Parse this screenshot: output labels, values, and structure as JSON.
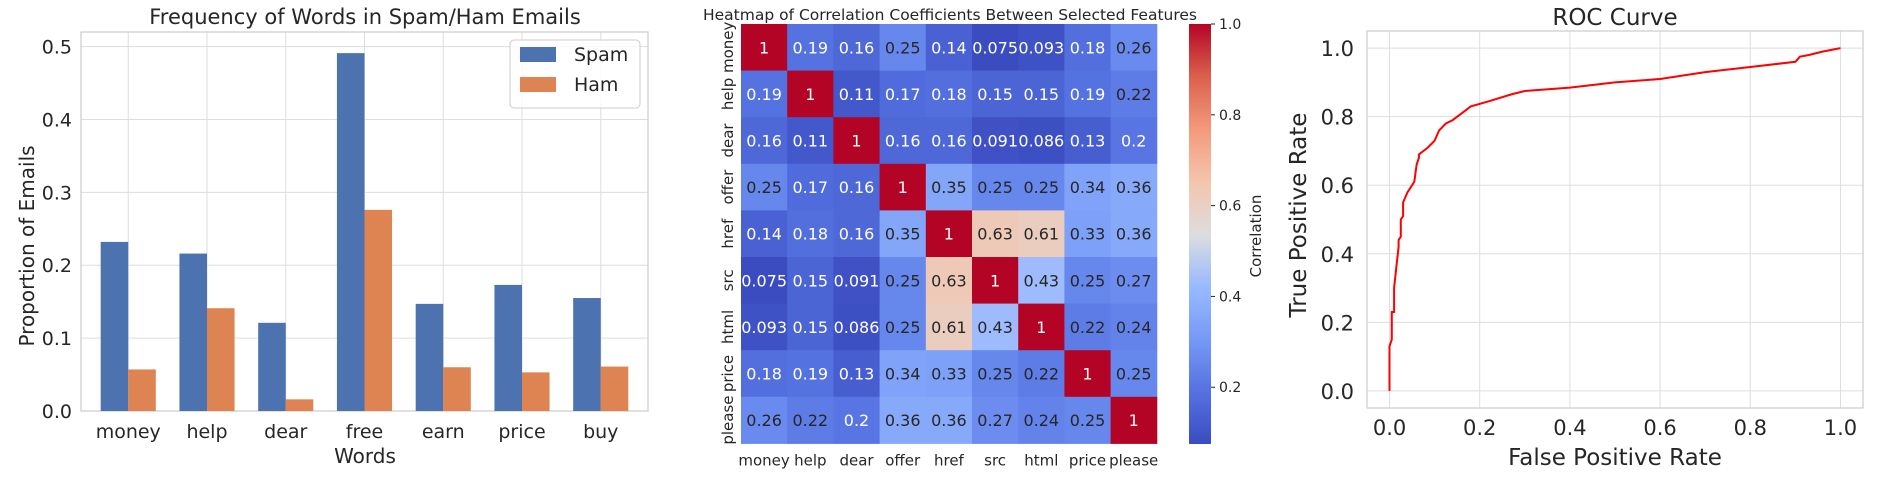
{
  "colors": {
    "spam": "#4c72b0",
    "ham": "#dd8452",
    "roc": "#ff0000",
    "grid": "#dddddd",
    "axis": "#cccccc",
    "text": "#262626"
  },
  "chart_data": [
    {
      "type": "bar",
      "title": "Frequency of Words in Spam/Ham Emails",
      "xlabel": "Words",
      "ylabel": "Proportion of Emails",
      "categories": [
        "money",
        "help",
        "dear",
        "free",
        "earn",
        "price",
        "buy"
      ],
      "series": [
        {
          "name": "Spam",
          "values": [
            0.232,
            0.216,
            0.121,
            0.491,
            0.147,
            0.173,
            0.155
          ]
        },
        {
          "name": "Ham",
          "values": [
            0.057,
            0.141,
            0.016,
            0.276,
            0.06,
            0.053,
            0.061
          ]
        }
      ],
      "ylim": [
        0,
        0.52
      ],
      "yticks": [
        0.0,
        0.1,
        0.2,
        0.3,
        0.4,
        0.5
      ],
      "ytick_labels": [
        "0.0",
        "0.1",
        "0.2",
        "0.3",
        "0.4",
        "0.5"
      ],
      "grid": true,
      "legend": "top-right"
    },
    {
      "type": "heatmap",
      "title": "Heatmap of Correlation Coefficients Between Selected Features",
      "labels": [
        "money",
        "help",
        "dear",
        "offer",
        "href",
        "src",
        "html",
        "price",
        "please"
      ],
      "matrix": [
        [
          1,
          0.19,
          0.16,
          0.25,
          0.14,
          0.075,
          0.093,
          0.18,
          0.26
        ],
        [
          0.19,
          1,
          0.11,
          0.17,
          0.18,
          0.15,
          0.15,
          0.19,
          0.22
        ],
        [
          0.16,
          0.11,
          1,
          0.16,
          0.16,
          0.091,
          0.086,
          0.13,
          0.2
        ],
        [
          0.25,
          0.17,
          0.16,
          1,
          0.35,
          0.25,
          0.25,
          0.34,
          0.36
        ],
        [
          0.14,
          0.18,
          0.16,
          0.35,
          1,
          0.63,
          0.61,
          0.33,
          0.36
        ],
        [
          0.075,
          0.15,
          0.091,
          0.25,
          0.63,
          1,
          0.43,
          0.25,
          0.27
        ],
        [
          0.093,
          0.15,
          0.086,
          0.25,
          0.61,
          0.43,
          1,
          0.22,
          0.24
        ],
        [
          0.18,
          0.19,
          0.13,
          0.34,
          0.33,
          0.25,
          0.22,
          1,
          0.25
        ],
        [
          0.26,
          0.22,
          0.2,
          0.36,
          0.36,
          0.27,
          0.24,
          0.25,
          1
        ]
      ],
      "colorbar": {
        "label": "Correlation",
        "ticks": [
          0.2,
          0.4,
          0.6,
          0.8,
          1.0
        ],
        "tick_labels": [
          "0.2",
          "0.4",
          "0.6",
          "0.8",
          "1.0"
        ],
        "range": [
          0.075,
          1.0
        ],
        "colormap": "coolwarm"
      }
    },
    {
      "type": "line",
      "title": "ROC Curve",
      "xlabel": "False Positive Rate",
      "ylabel": "True Positive Rate",
      "xlim": [
        -0.05,
        1.05
      ],
      "ylim": [
        -0.05,
        1.05
      ],
      "xticks": [
        0.0,
        0.2,
        0.4,
        0.6,
        0.8,
        1.0
      ],
      "xtick_labels": [
        "0.0",
        "0.2",
        "0.4",
        "0.6",
        "0.8",
        "1.0"
      ],
      "yticks": [
        0.0,
        0.2,
        0.4,
        0.6,
        0.8,
        1.0
      ],
      "ytick_labels": [
        "0.0",
        "0.2",
        "0.4",
        "0.6",
        "0.8",
        "1.0"
      ],
      "grid": true,
      "series": [
        {
          "x": [
            0.0,
            0.0,
            0.005,
            0.005,
            0.01,
            0.01,
            0.015,
            0.02,
            0.02,
            0.025,
            0.025,
            0.03,
            0.03,
            0.04,
            0.045,
            0.05,
            0.055,
            0.06,
            0.065,
            0.065,
            0.075,
            0.085,
            0.1,
            0.11,
            0.125,
            0.14,
            0.16,
            0.18,
            0.22,
            0.27,
            0.3,
            0.4,
            0.5,
            0.6,
            0.7,
            0.8,
            0.9,
            0.91,
            0.93,
            0.96,
            0.98,
            1.0
          ],
          "y": [
            0.0,
            0.13,
            0.15,
            0.23,
            0.23,
            0.3,
            0.36,
            0.42,
            0.44,
            0.45,
            0.5,
            0.51,
            0.55,
            0.58,
            0.59,
            0.6,
            0.61,
            0.66,
            0.68,
            0.69,
            0.7,
            0.71,
            0.73,
            0.76,
            0.78,
            0.79,
            0.81,
            0.83,
            0.845,
            0.865,
            0.875,
            0.885,
            0.9,
            0.91,
            0.93,
            0.945,
            0.96,
            0.975,
            0.98,
            0.99,
            0.995,
            1.0
          ]
        }
      ]
    }
  ]
}
